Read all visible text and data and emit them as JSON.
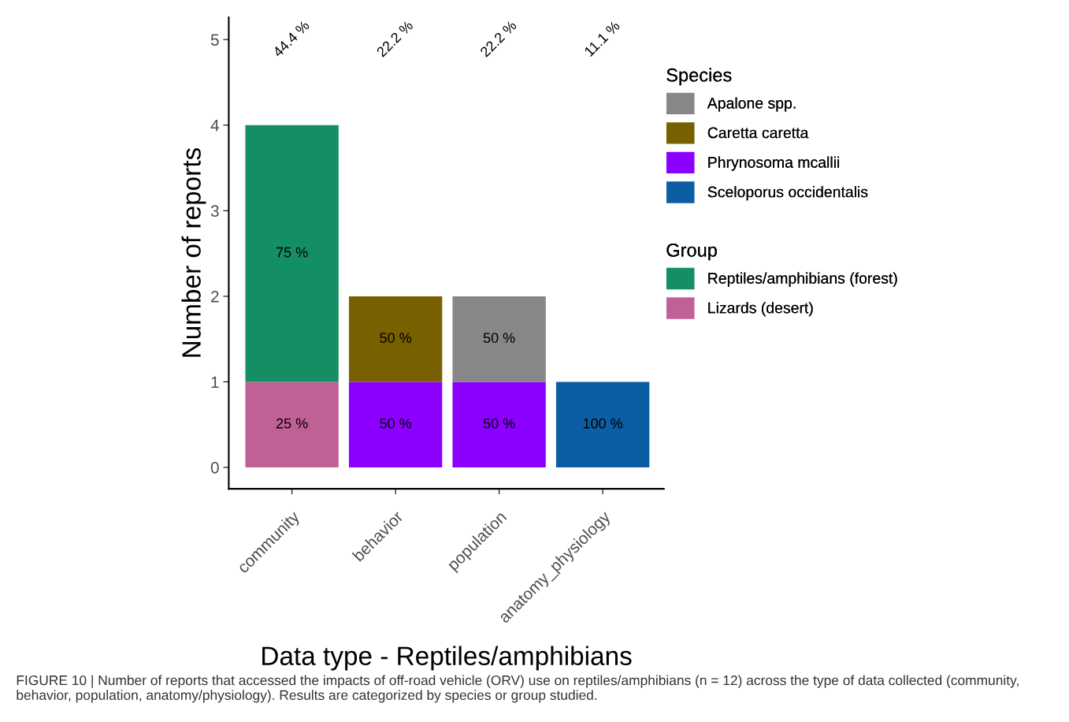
{
  "chart_data": {
    "type": "bar",
    "stacked": true,
    "categories": [
      "community",
      "behavior",
      "population",
      "anatomy_physiology"
    ],
    "xlabel": "Data type - Reptiles/amphibians",
    "ylabel": "Number of reports",
    "ylim": [
      -0.25,
      5.26
    ],
    "yticks": [
      0,
      1,
      2,
      3,
      4,
      5
    ],
    "legend": "right",
    "legend_title": [
      "Species",
      "Group"
    ],
    "series": [
      {
        "name": "Lizards (desert)",
        "color": "#c06196",
        "values": [
          1,
          null,
          null,
          null
        ]
      },
      {
        "name": "Reptiles/amphibians (forest)",
        "color": "#148f63",
        "values": [
          3,
          null,
          null,
          null
        ]
      },
      {
        "name": "Sceloporus occidentalis",
        "color": "#0c5da3",
        "values": [
          null,
          null,
          null,
          1
        ]
      },
      {
        "name": "Phrynosoma mcallii",
        "color": "#8b00ff",
        "values": [
          null,
          1,
          1,
          null
        ]
      },
      {
        "name": "Caretta caretta",
        "color": "#785f00",
        "values": [
          null,
          1,
          null,
          null
        ]
      },
      {
        "name": "Apalone spp.",
        "color": "#878787",
        "values": [
          null,
          null,
          1,
          null
        ]
      }
    ],
    "annotations": [
      "25 %",
      "75 %",
      "100 %",
      "50 %",
      "50 %",
      "50 %",
      "50 %",
      "44.4 %",
      "22.2 %",
      "22.2 %",
      "11.1 %",
      "FIGURE 10 | Number of reports that accessed the impacts of off-road vehicle (ORV) use on reptiles/amphibians (n = 12) across the type of data collected (community, behavior, population, anatomy/physiology). Results are categorized by species or group studied."
    ]
  }
}
